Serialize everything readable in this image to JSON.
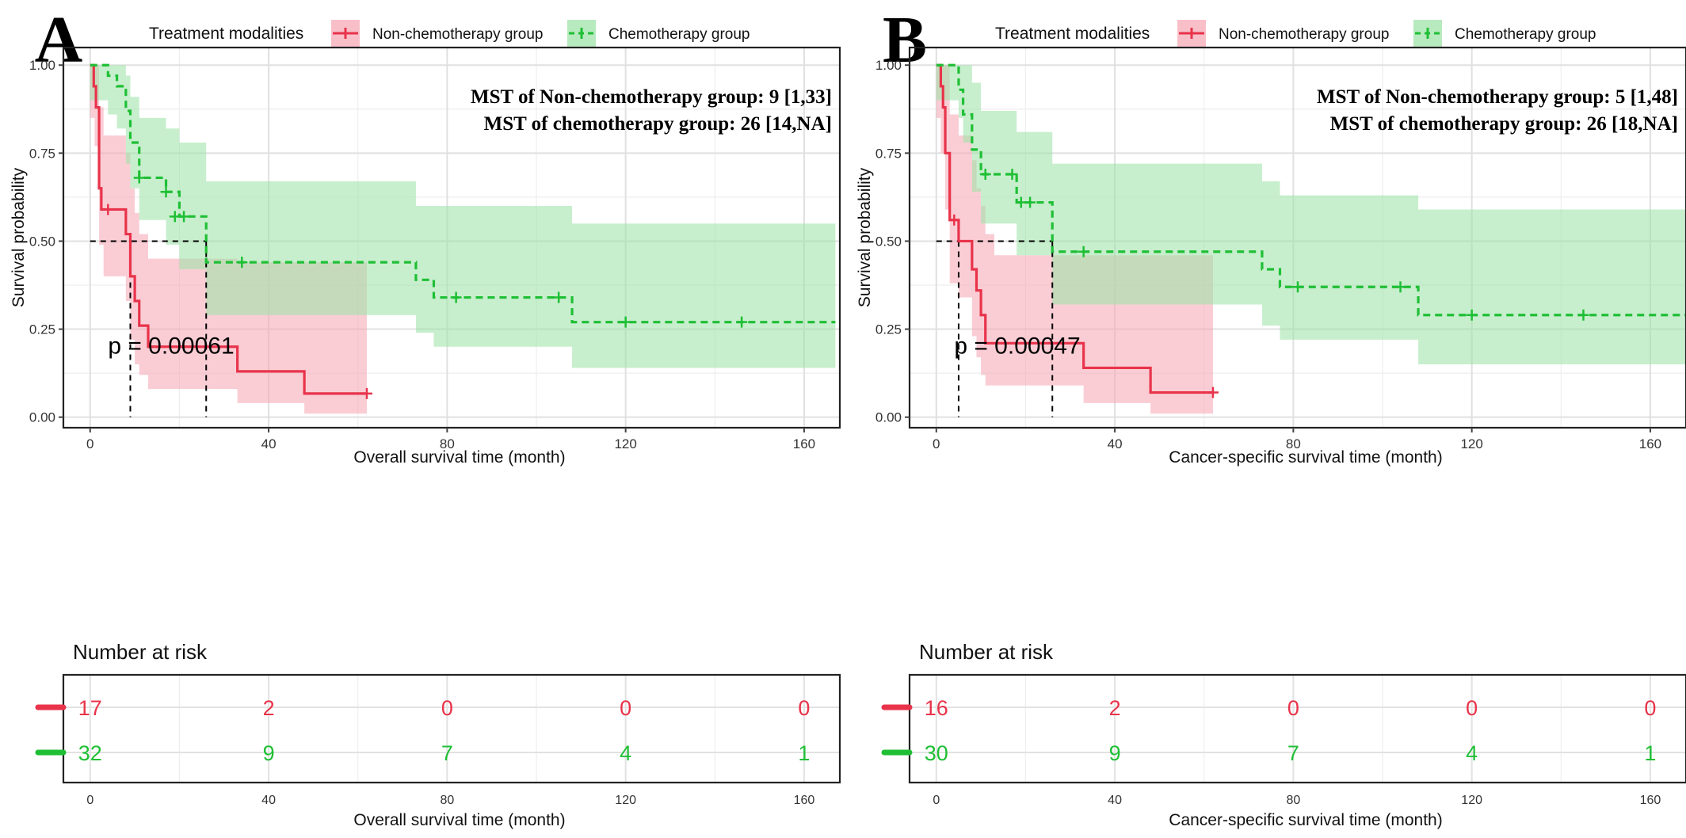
{
  "chart_data": [
    {
      "panel_letter": "A",
      "type": "line",
      "subtype": "kaplan-meier",
      "legend": {
        "title": "Treatment modalities",
        "placement": "top",
        "entries": [
          "Non-chemotherapy group",
          "Chemotherapy group"
        ]
      },
      "xlabel": "Overall survival time (month)",
      "ylabel": "Survival probability",
      "xlim": [
        -6,
        168
      ],
      "ylim": [
        -0.03,
        1.05
      ],
      "x_ticks": [
        "0",
        "40",
        "80",
        "120",
        "160"
      ],
      "y_ticks": [
        "0.00",
        "0.25",
        "0.50",
        "0.75",
        "1.00"
      ],
      "grid": true,
      "annotations": [
        "MST of Non-chemotherapy group: 9 [1,33]",
        "MST of chemotherapy group: 26 [14,NA]"
      ],
      "p_value": "p = 0.00061",
      "median_lines": {
        "y": 0.5,
        "x": [
          9,
          26
        ]
      },
      "series": [
        {
          "name": "Non-chemotherapy group",
          "color": "#e8334a",
          "fill": "#f7a9b7",
          "line_style": "solid",
          "steps": [
            [
              0,
              1.0
            ],
            [
              0.8,
              0.94
            ],
            [
              1.3,
              0.88
            ],
            [
              2,
              0.65
            ],
            [
              2.5,
              0.59
            ],
            [
              8,
              0.52
            ],
            [
              9,
              0.4
            ],
            [
              10,
              0.33
            ],
            [
              11,
              0.26
            ],
            [
              13,
              0.2
            ],
            [
              33,
              0.13
            ],
            [
              48,
              0.067
            ],
            [
              62,
              0.067
            ]
          ],
          "upper": [
            [
              0,
              1.0
            ],
            [
              1,
              1.0
            ],
            [
              2,
              0.88
            ],
            [
              3,
              0.8
            ],
            [
              8,
              0.75
            ],
            [
              9,
              0.65
            ],
            [
              10,
              0.58
            ],
            [
              11,
              0.52
            ],
            [
              13,
              0.45
            ],
            [
              33,
              0.44
            ],
            [
              48,
              0.44
            ],
            [
              62,
              0.44
            ]
          ],
          "lower": [
            [
              0,
              0.85
            ],
            [
              1,
              0.77
            ],
            [
              2,
              0.49
            ],
            [
              3,
              0.4
            ],
            [
              8,
              0.33
            ],
            [
              9,
              0.22
            ],
            [
              10,
              0.15
            ],
            [
              11,
              0.12
            ],
            [
              13,
              0.08
            ],
            [
              33,
              0.04
            ],
            [
              48,
              0.01
            ],
            [
              62,
              0.01
            ]
          ],
          "censors": [
            [
              4,
              0.59
            ],
            [
              62,
              0.067
            ]
          ]
        },
        {
          "name": "Chemotherapy group",
          "color": "#1fbf35",
          "fill": "#9fe3a8",
          "line_style": "dashed",
          "steps": [
            [
              0,
              1.0
            ],
            [
              4,
              0.97
            ],
            [
              6,
              0.94
            ],
            [
              8,
              0.87
            ],
            [
              9,
              0.78
            ],
            [
              11,
              0.68
            ],
            [
              17,
              0.64
            ],
            [
              20,
              0.57
            ],
            [
              26,
              0.44
            ],
            [
              73,
              0.39
            ],
            [
              77,
              0.34
            ],
            [
              108,
              0.27
            ],
            [
              167,
              0.27
            ]
          ],
          "upper": [
            [
              0,
              1.0
            ],
            [
              6,
              1.0
            ],
            [
              8,
              0.97
            ],
            [
              9,
              0.91
            ],
            [
              11,
              0.85
            ],
            [
              17,
              0.82
            ],
            [
              20,
              0.78
            ],
            [
              26,
              0.67
            ],
            [
              73,
              0.6
            ],
            [
              77,
              0.6
            ],
            [
              108,
              0.55
            ],
            [
              167,
              0.55
            ]
          ],
          "lower": [
            [
              0,
              0.9
            ],
            [
              4,
              0.86
            ],
            [
              6,
              0.82
            ],
            [
              8,
              0.72
            ],
            [
              9,
              0.65
            ],
            [
              11,
              0.56
            ],
            [
              17,
              0.49
            ],
            [
              20,
              0.42
            ],
            [
              26,
              0.29
            ],
            [
              73,
              0.24
            ],
            [
              77,
              0.2
            ],
            [
              108,
              0.14
            ],
            [
              167,
              0.14
            ]
          ],
          "censors": [
            [
              11,
              0.68
            ],
            [
              17,
              0.64
            ],
            [
              19,
              0.57
            ],
            [
              21,
              0.57
            ],
            [
              34,
              0.44
            ],
            [
              82,
              0.34
            ],
            [
              105,
              0.34
            ],
            [
              120,
              0.27
            ],
            [
              146,
              0.27
            ]
          ]
        }
      ],
      "risk_table": {
        "title": "Number at risk",
        "xlabel": "Overall survival time (month)",
        "times": [
          "0",
          "40",
          "80",
          "120",
          "160"
        ],
        "rows": [
          {
            "color": "#e8334a",
            "values": [
              "17",
              "2",
              "0",
              "0",
              "0"
            ]
          },
          {
            "color": "#1fbf35",
            "values": [
              "32",
              "9",
              "7",
              "4",
              "1"
            ]
          }
        ]
      }
    },
    {
      "panel_letter": "B",
      "type": "line",
      "subtype": "kaplan-meier",
      "legend": {
        "title": "Treatment modalities",
        "placement": "top",
        "entries": [
          "Non-chemotherapy group",
          "Chemotherapy group"
        ]
      },
      "xlabel": "Cancer-specific survival time (month)",
      "ylabel": "Survival probability",
      "xlim": [
        -6,
        168
      ],
      "ylim": [
        -0.03,
        1.05
      ],
      "x_ticks": [
        "0",
        "40",
        "80",
        "120",
        "160"
      ],
      "y_ticks": [
        "0.00",
        "0.25",
        "0.50",
        "0.75",
        "1.00"
      ],
      "grid": true,
      "annotations": [
        "MST of Non-chemotherapy group: 5 [1,48]",
        "MST of chemotherapy group: 26 [18,NA]"
      ],
      "p_value": "p = 0.00047",
      "median_lines": {
        "y": 0.5,
        "x": [
          5,
          26
        ]
      },
      "series": [
        {
          "name": "Non-chemotherapy group",
          "color": "#e8334a",
          "fill": "#f7a9b7",
          "line_style": "solid",
          "steps": [
            [
              0,
              1.0
            ],
            [
              1,
              0.94
            ],
            [
              1.5,
              0.88
            ],
            [
              2,
              0.75
            ],
            [
              3,
              0.56
            ],
            [
              5,
              0.5
            ],
            [
              8,
              0.42
            ],
            [
              9,
              0.36
            ],
            [
              10,
              0.29
            ],
            [
              11,
              0.21
            ],
            [
              33,
              0.14
            ],
            [
              48,
              0.07
            ],
            [
              62,
              0.07
            ]
          ],
          "upper": [
            [
              0,
              1.0
            ],
            [
              2,
              1.0
            ],
            [
              3,
              0.86
            ],
            [
              5,
              0.8
            ],
            [
              8,
              0.73
            ],
            [
              9,
              0.65
            ],
            [
              10,
              0.6
            ],
            [
              11,
              0.52
            ],
            [
              13,
              0.46
            ],
            [
              33,
              0.46
            ],
            [
              48,
              0.46
            ],
            [
              62,
              0.46
            ]
          ],
          "lower": [
            [
              0,
              0.85
            ],
            [
              1,
              0.75
            ],
            [
              2,
              0.59
            ],
            [
              3,
              0.38
            ],
            [
              5,
              0.34
            ],
            [
              8,
              0.23
            ],
            [
              9,
              0.17
            ],
            [
              10,
              0.12
            ],
            [
              11,
              0.09
            ],
            [
              33,
              0.04
            ],
            [
              48,
              0.01
            ],
            [
              62,
              0.01
            ]
          ],
          "censors": [
            [
              4,
              0.56
            ],
            [
              62,
              0.07
            ]
          ]
        },
        {
          "name": "Chemotherapy group",
          "color": "#1fbf35",
          "fill": "#9fe3a8",
          "line_style": "dashed",
          "steps": [
            [
              0,
              1.0
            ],
            [
              5,
              0.93
            ],
            [
              6,
              0.86
            ],
            [
              8,
              0.76
            ],
            [
              10,
              0.69
            ],
            [
              18,
              0.61
            ],
            [
              26,
              0.47
            ],
            [
              73,
              0.42
            ],
            [
              77,
              0.37
            ],
            [
              108,
              0.29
            ],
            [
              168,
              0.29
            ]
          ],
          "upper": [
            [
              0,
              1.0
            ],
            [
              6,
              1.0
            ],
            [
              8,
              0.95
            ],
            [
              10,
              0.87
            ],
            [
              18,
              0.81
            ],
            [
              26,
              0.72
            ],
            [
              73,
              0.67
            ],
            [
              77,
              0.63
            ],
            [
              108,
              0.59
            ],
            [
              168,
              0.59
            ]
          ],
          "lower": [
            [
              0,
              0.9
            ],
            [
              5,
              0.85
            ],
            [
              6,
              0.78
            ],
            [
              8,
              0.64
            ],
            [
              10,
              0.55
            ],
            [
              18,
              0.46
            ],
            [
              26,
              0.32
            ],
            [
              73,
              0.26
            ],
            [
              77,
              0.22
            ],
            [
              108,
              0.15
            ],
            [
              168,
              0.15
            ]
          ],
          "censors": [
            [
              11,
              0.69
            ],
            [
              17,
              0.69
            ],
            [
              19,
              0.61
            ],
            [
              21,
              0.61
            ],
            [
              33,
              0.47
            ],
            [
              81,
              0.37
            ],
            [
              104,
              0.37
            ],
            [
              120,
              0.29
            ],
            [
              145,
              0.29
            ]
          ]
        }
      ],
      "risk_table": {
        "title": "Number at risk",
        "xlabel": "Cancer-specific survival time (month)",
        "times": [
          "0",
          "40",
          "80",
          "120",
          "160"
        ],
        "rows": [
          {
            "color": "#e8334a",
            "values": [
              "16",
              "2",
              "0",
              "0",
              "0"
            ]
          },
          {
            "color": "#1fbf35",
            "values": [
              "30",
              "9",
              "7",
              "4",
              "1"
            ]
          }
        ]
      }
    }
  ]
}
